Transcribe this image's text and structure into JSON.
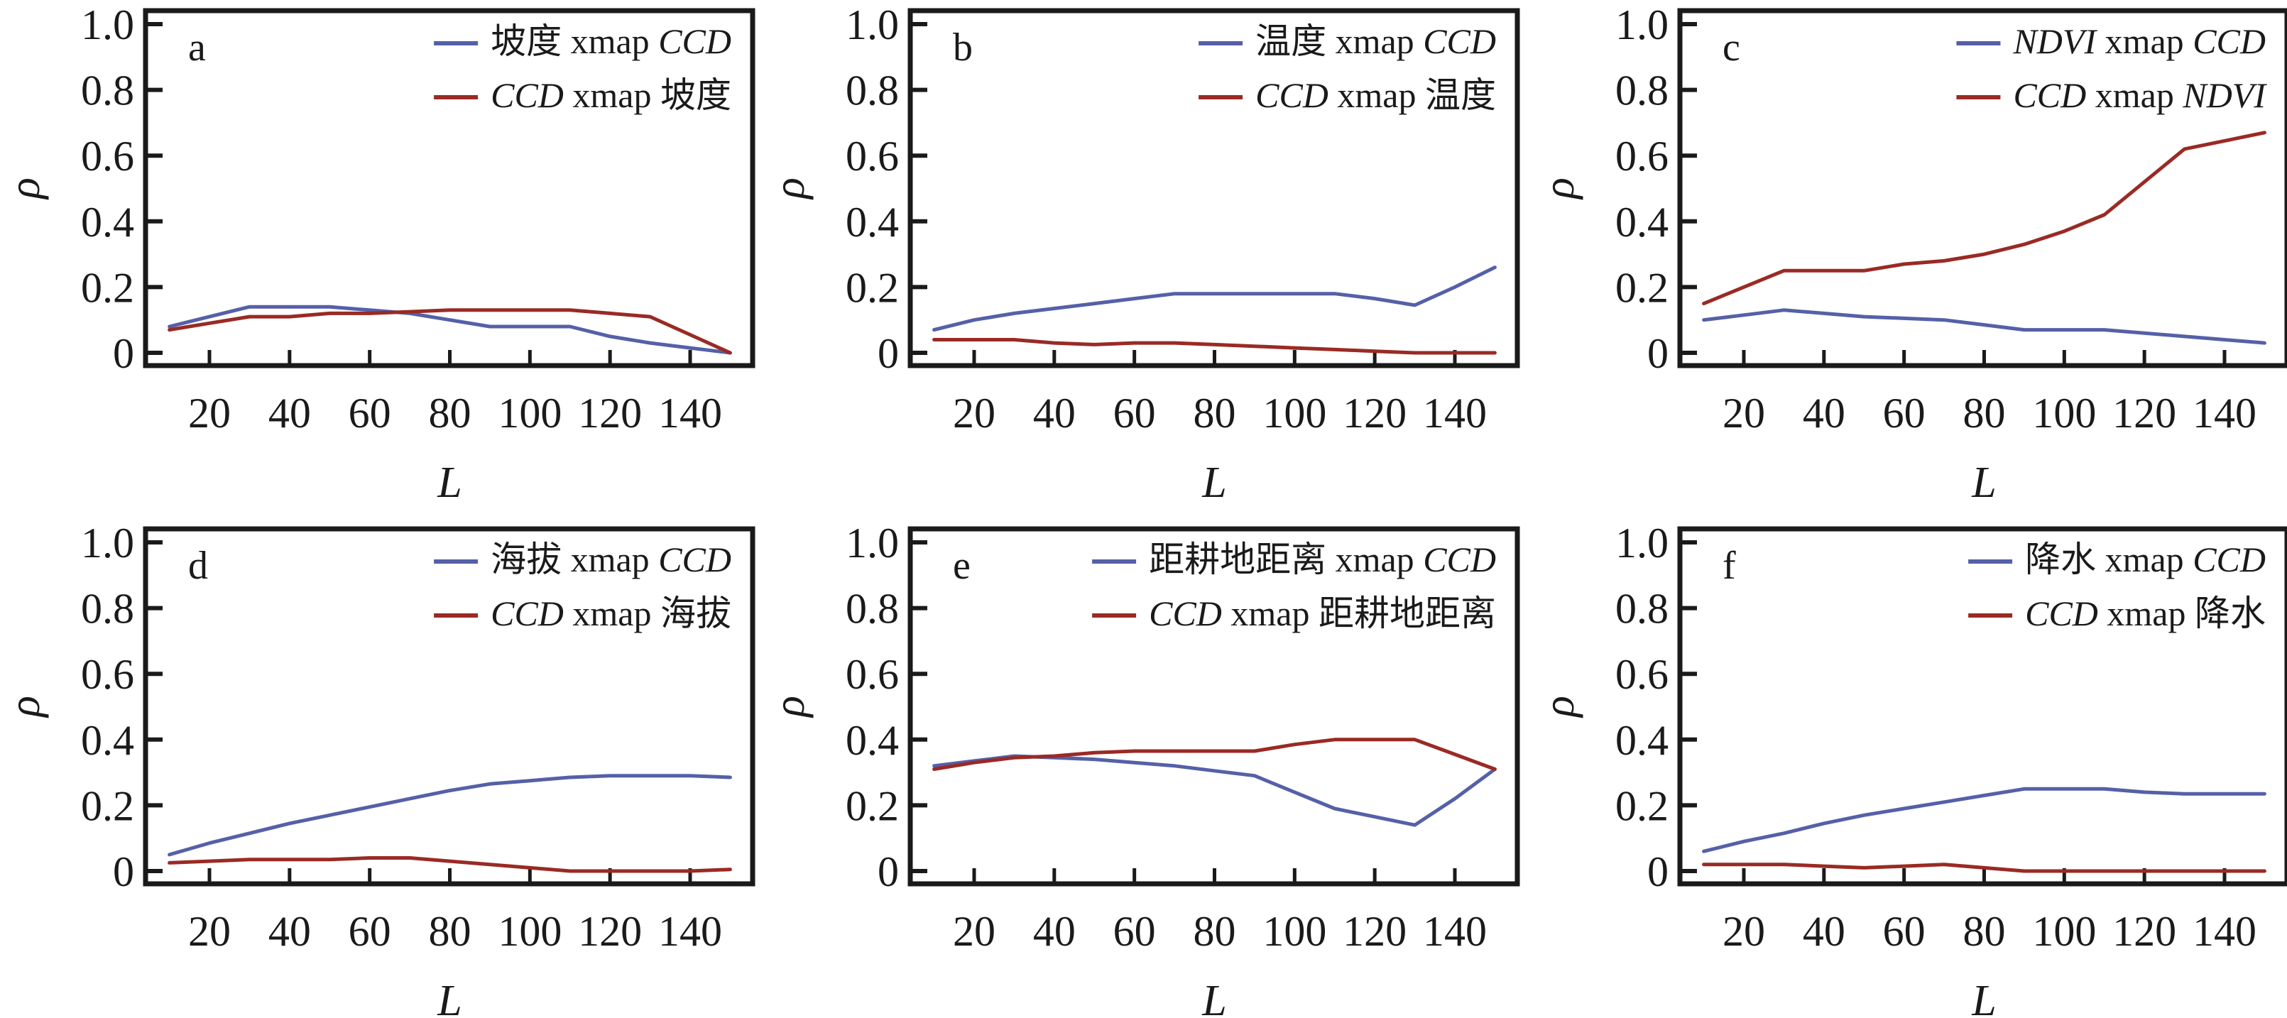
{
  "chart_data": [
    {
      "type": "line",
      "panel": "a",
      "title": "",
      "xlabel": "L",
      "ylabel": "ρ",
      "xlim": [
        5,
        155
      ],
      "ylim": [
        -0.03,
        1.03
      ],
      "xticks": [
        20,
        40,
        60,
        80,
        100,
        120,
        140
      ],
      "yticks": [
        0,
        0.2,
        0.4,
        0.6,
        0.8,
        1.0
      ],
      "ytick_labels": [
        "0",
        "0.2",
        "0.4",
        "0.6",
        "0.8",
        "1.0"
      ],
      "grid": false,
      "legend_position": "top-right",
      "x": [
        10,
        20,
        30,
        40,
        50,
        60,
        70,
        80,
        90,
        100,
        110,
        120,
        130,
        140,
        150
      ],
      "series": [
        {
          "name": "坡度 xmap CCD",
          "legend": [
            {
              "t": "坡度 xmap ",
              "it": false
            },
            {
              "t": "CCD",
              "it": true
            }
          ],
          "color": "#5560a8",
          "values": [
            0.08,
            0.11,
            0.14,
            0.14,
            0.14,
            0.13,
            0.12,
            0.1,
            0.08,
            0.08,
            0.08,
            0.05,
            0.03,
            0.015,
            0.0
          ]
        },
        {
          "name": "CCD xmap 坡度",
          "legend": [
            {
              "t": "CCD",
              "it": true
            },
            {
              "t": " xmap 坡度",
              "it": false
            }
          ],
          "color": "#9a2a24",
          "values": [
            0.07,
            0.09,
            0.11,
            0.11,
            0.12,
            0.12,
            0.125,
            0.13,
            0.13,
            0.13,
            0.13,
            0.12,
            0.11,
            0.055,
            0.0
          ]
        }
      ]
    },
    {
      "type": "line",
      "panel": "b",
      "title": "",
      "xlabel": "L",
      "ylabel": "ρ",
      "xlim": [
        5,
        155
      ],
      "ylim": [
        -0.03,
        1.03
      ],
      "xticks": [
        20,
        40,
        60,
        80,
        100,
        120,
        140
      ],
      "yticks": [
        0,
        0.2,
        0.4,
        0.6,
        0.8,
        1.0
      ],
      "ytick_labels": [
        "0",
        "0.2",
        "0.4",
        "0.6",
        "0.8",
        "1.0"
      ],
      "grid": false,
      "legend_position": "top-right",
      "x": [
        10,
        20,
        30,
        40,
        50,
        60,
        70,
        80,
        90,
        100,
        110,
        120,
        130,
        140,
        150
      ],
      "series": [
        {
          "name": "温度 xmap CCD",
          "legend": [
            {
              "t": "温度 xmap ",
              "it": false
            },
            {
              "t": "CCD",
              "it": true
            }
          ],
          "color": "#5560a8",
          "values": [
            0.07,
            0.1,
            0.12,
            0.135,
            0.15,
            0.165,
            0.18,
            0.18,
            0.18,
            0.18,
            0.18,
            0.165,
            0.145,
            0.2,
            0.26
          ]
        },
        {
          "name": "CCD xmap 温度",
          "legend": [
            {
              "t": "CCD",
              "it": true
            },
            {
              "t": " xmap 温度",
              "it": false
            }
          ],
          "color": "#9a2a24",
          "values": [
            0.04,
            0.04,
            0.04,
            0.03,
            0.025,
            0.03,
            0.03,
            0.025,
            0.02,
            0.015,
            0.01,
            0.005,
            0.0,
            0.0,
            0.0
          ]
        }
      ]
    },
    {
      "type": "line",
      "panel": "c",
      "title": "",
      "xlabel": "L",
      "ylabel": "ρ",
      "xlim": [
        5,
        155
      ],
      "ylim": [
        -0.03,
        1.03
      ],
      "xticks": [
        20,
        40,
        60,
        80,
        100,
        120,
        140
      ],
      "yticks": [
        0,
        0.2,
        0.4,
        0.6,
        0.8,
        1.0
      ],
      "ytick_labels": [
        "0",
        "0.2",
        "0.4",
        "0.6",
        "0.8",
        "1.0"
      ],
      "grid": false,
      "legend_position": "top-right",
      "x": [
        10,
        20,
        30,
        40,
        50,
        60,
        70,
        80,
        90,
        100,
        110,
        120,
        130,
        140,
        150
      ],
      "series": [
        {
          "name": "NDVI xmap CCD",
          "legend": [
            {
              "t": "NDVI",
              "it": true
            },
            {
              "t": " xmap ",
              "it": false
            },
            {
              "t": "CCD",
              "it": true
            }
          ],
          "color": "#5560a8",
          "values": [
            0.1,
            0.115,
            0.13,
            0.12,
            0.11,
            0.105,
            0.1,
            0.085,
            0.07,
            0.07,
            0.07,
            0.06,
            0.05,
            0.04,
            0.03
          ]
        },
        {
          "name": "CCD xmap NDVI",
          "legend": [
            {
              "t": "CCD",
              "it": true
            },
            {
              "t": " xmap ",
              "it": false
            },
            {
              "t": "NDVI",
              "it": true
            }
          ],
          "color": "#9a2a24",
          "values": [
            0.15,
            0.2,
            0.25,
            0.25,
            0.25,
            0.27,
            0.28,
            0.3,
            0.33,
            0.37,
            0.42,
            0.52,
            0.62,
            0.645,
            0.67
          ]
        }
      ]
    },
    {
      "type": "line",
      "panel": "d",
      "title": "",
      "xlabel": "L",
      "ylabel": "ρ",
      "xlim": [
        5,
        155
      ],
      "ylim": [
        -0.03,
        1.03
      ],
      "xticks": [
        20,
        40,
        60,
        80,
        100,
        120,
        140
      ],
      "yticks": [
        0,
        0.2,
        0.4,
        0.6,
        0.8,
        1.0
      ],
      "ytick_labels": [
        "0",
        "0.2",
        "0.4",
        "0.6",
        "0.8",
        "1.0"
      ],
      "grid": false,
      "legend_position": "top-right",
      "x": [
        10,
        20,
        30,
        40,
        50,
        60,
        70,
        80,
        90,
        100,
        110,
        120,
        130,
        140,
        150
      ],
      "series": [
        {
          "name": "海拔 xmap CCD",
          "legend": [
            {
              "t": "海拔 xmap ",
              "it": false
            },
            {
              "t": "CCD",
              "it": true
            }
          ],
          "color": "#5560a8",
          "values": [
            0.05,
            0.085,
            0.115,
            0.145,
            0.17,
            0.195,
            0.22,
            0.245,
            0.265,
            0.275,
            0.285,
            0.29,
            0.29,
            0.29,
            0.285
          ]
        },
        {
          "name": "CCD xmap 海拔",
          "legend": [
            {
              "t": "CCD",
              "it": true
            },
            {
              "t": " xmap 海拔",
              "it": false
            }
          ],
          "color": "#9a2a24",
          "values": [
            0.025,
            0.03,
            0.035,
            0.035,
            0.035,
            0.04,
            0.04,
            0.03,
            0.02,
            0.01,
            0.0,
            0.0,
            0.0,
            0.0,
            0.005
          ]
        }
      ]
    },
    {
      "type": "line",
      "panel": "e",
      "title": "",
      "xlabel": "L",
      "ylabel": "ρ",
      "xlim": [
        5,
        155
      ],
      "ylim": [
        -0.03,
        1.03
      ],
      "xticks": [
        20,
        40,
        60,
        80,
        100,
        120,
        140
      ],
      "yticks": [
        0,
        0.2,
        0.4,
        0.6,
        0.8,
        1.0
      ],
      "ytick_labels": [
        "0",
        "0.2",
        "0.4",
        "0.6",
        "0.8",
        "1.0"
      ],
      "grid": false,
      "legend_position": "top-right",
      "x": [
        10,
        20,
        30,
        40,
        50,
        60,
        70,
        80,
        90,
        100,
        110,
        120,
        130,
        140,
        150
      ],
      "series": [
        {
          "name": "距耕地距离 xmap CCD",
          "legend": [
            {
              "t": "距耕地距离 xmap ",
              "it": false
            },
            {
              "t": "CCD",
              "it": true
            }
          ],
          "color": "#5560a8",
          "values": [
            0.32,
            0.335,
            0.35,
            0.345,
            0.34,
            0.33,
            0.32,
            0.305,
            0.29,
            0.24,
            0.19,
            0.165,
            0.14,
            0.22,
            0.31
          ]
        },
        {
          "name": "CCD xmap 距耕地距离",
          "legend": [
            {
              "t": "CCD",
              "it": true
            },
            {
              "t": " xmap 距耕地距离",
              "it": false
            }
          ],
          "color": "#9a2a24",
          "values": [
            0.31,
            0.33,
            0.345,
            0.35,
            0.36,
            0.365,
            0.365,
            0.365,
            0.365,
            0.385,
            0.4,
            0.4,
            0.4,
            0.355,
            0.31
          ]
        }
      ]
    },
    {
      "type": "line",
      "panel": "f",
      "title": "",
      "xlabel": "L",
      "ylabel": "ρ",
      "xlim": [
        5,
        155
      ],
      "ylim": [
        -0.03,
        1.03
      ],
      "xticks": [
        20,
        40,
        60,
        80,
        100,
        120,
        140
      ],
      "yticks": [
        0,
        0.2,
        0.4,
        0.6,
        0.8,
        1.0
      ],
      "ytick_labels": [
        "0",
        "0.2",
        "0.4",
        "0.6",
        "0.8",
        "1.0"
      ],
      "grid": false,
      "legend_position": "top-right",
      "x": [
        10,
        20,
        30,
        40,
        50,
        60,
        70,
        80,
        90,
        100,
        110,
        120,
        130,
        140,
        150
      ],
      "series": [
        {
          "name": "降水 xmap CCD",
          "legend": [
            {
              "t": "降水 xmap ",
              "it": false
            },
            {
              "t": "CCD",
              "it": true
            }
          ],
          "color": "#5560a8",
          "values": [
            0.06,
            0.09,
            0.115,
            0.145,
            0.17,
            0.19,
            0.21,
            0.23,
            0.25,
            0.25,
            0.25,
            0.24,
            0.235,
            0.235,
            0.235
          ]
        },
        {
          "name": "CCD xmap 降水",
          "legend": [
            {
              "t": "CCD",
              "it": true
            },
            {
              "t": " xmap 降水",
              "it": false
            }
          ],
          "color": "#9a2a24",
          "values": [
            0.02,
            0.02,
            0.02,
            0.015,
            0.01,
            0.015,
            0.02,
            0.01,
            0.0,
            0.0,
            0.0,
            0.0,
            0.0,
            0.0,
            0.0
          ]
        }
      ]
    }
  ]
}
